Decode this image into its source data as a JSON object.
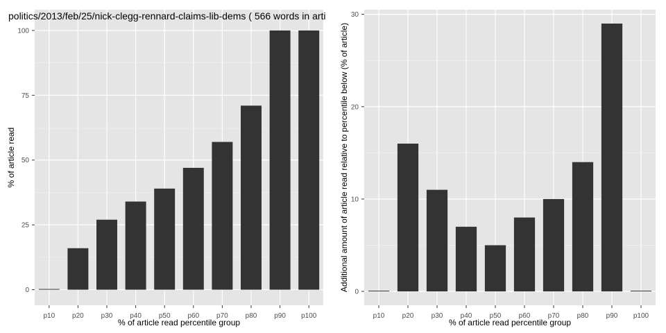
{
  "chart_data": [
    {
      "type": "bar",
      "title": "politics/2013/feb/25/nick-clegg-rennard-claims-lib-dems ( 566 words in arti",
      "xlabel": "% of article read percentile group",
      "ylabel": "% of article read",
      "categories": [
        "p10",
        "p20",
        "p30",
        "p40",
        "p50",
        "p60",
        "p70",
        "p80",
        "p90",
        "p100"
      ],
      "values": [
        0,
        16,
        27,
        34,
        39,
        47,
        57,
        71,
        100,
        100
      ],
      "ylim": [
        -6,
        108
      ],
      "yticks": [
        0,
        25,
        50,
        75,
        100
      ],
      "grid": true,
      "bar_color": "#333333",
      "panel_color": "#e5e5e5"
    },
    {
      "type": "bar",
      "title": "",
      "xlabel": "% of article read percentile group",
      "ylabel": "Additional amount of article read relative to percentile below (% of article)",
      "categories": [
        "p10",
        "p20",
        "p30",
        "p40",
        "p50",
        "p60",
        "p70",
        "p80",
        "p90",
        "p100"
      ],
      "values": [
        0,
        16,
        11,
        7,
        5,
        8,
        10,
        14,
        29,
        0
      ],
      "ylim": [
        -1.5,
        30.5
      ],
      "yticks": [
        0,
        10,
        20,
        30
      ],
      "grid": true,
      "bar_color": "#333333",
      "panel_color": "#e5e5e5"
    }
  ]
}
